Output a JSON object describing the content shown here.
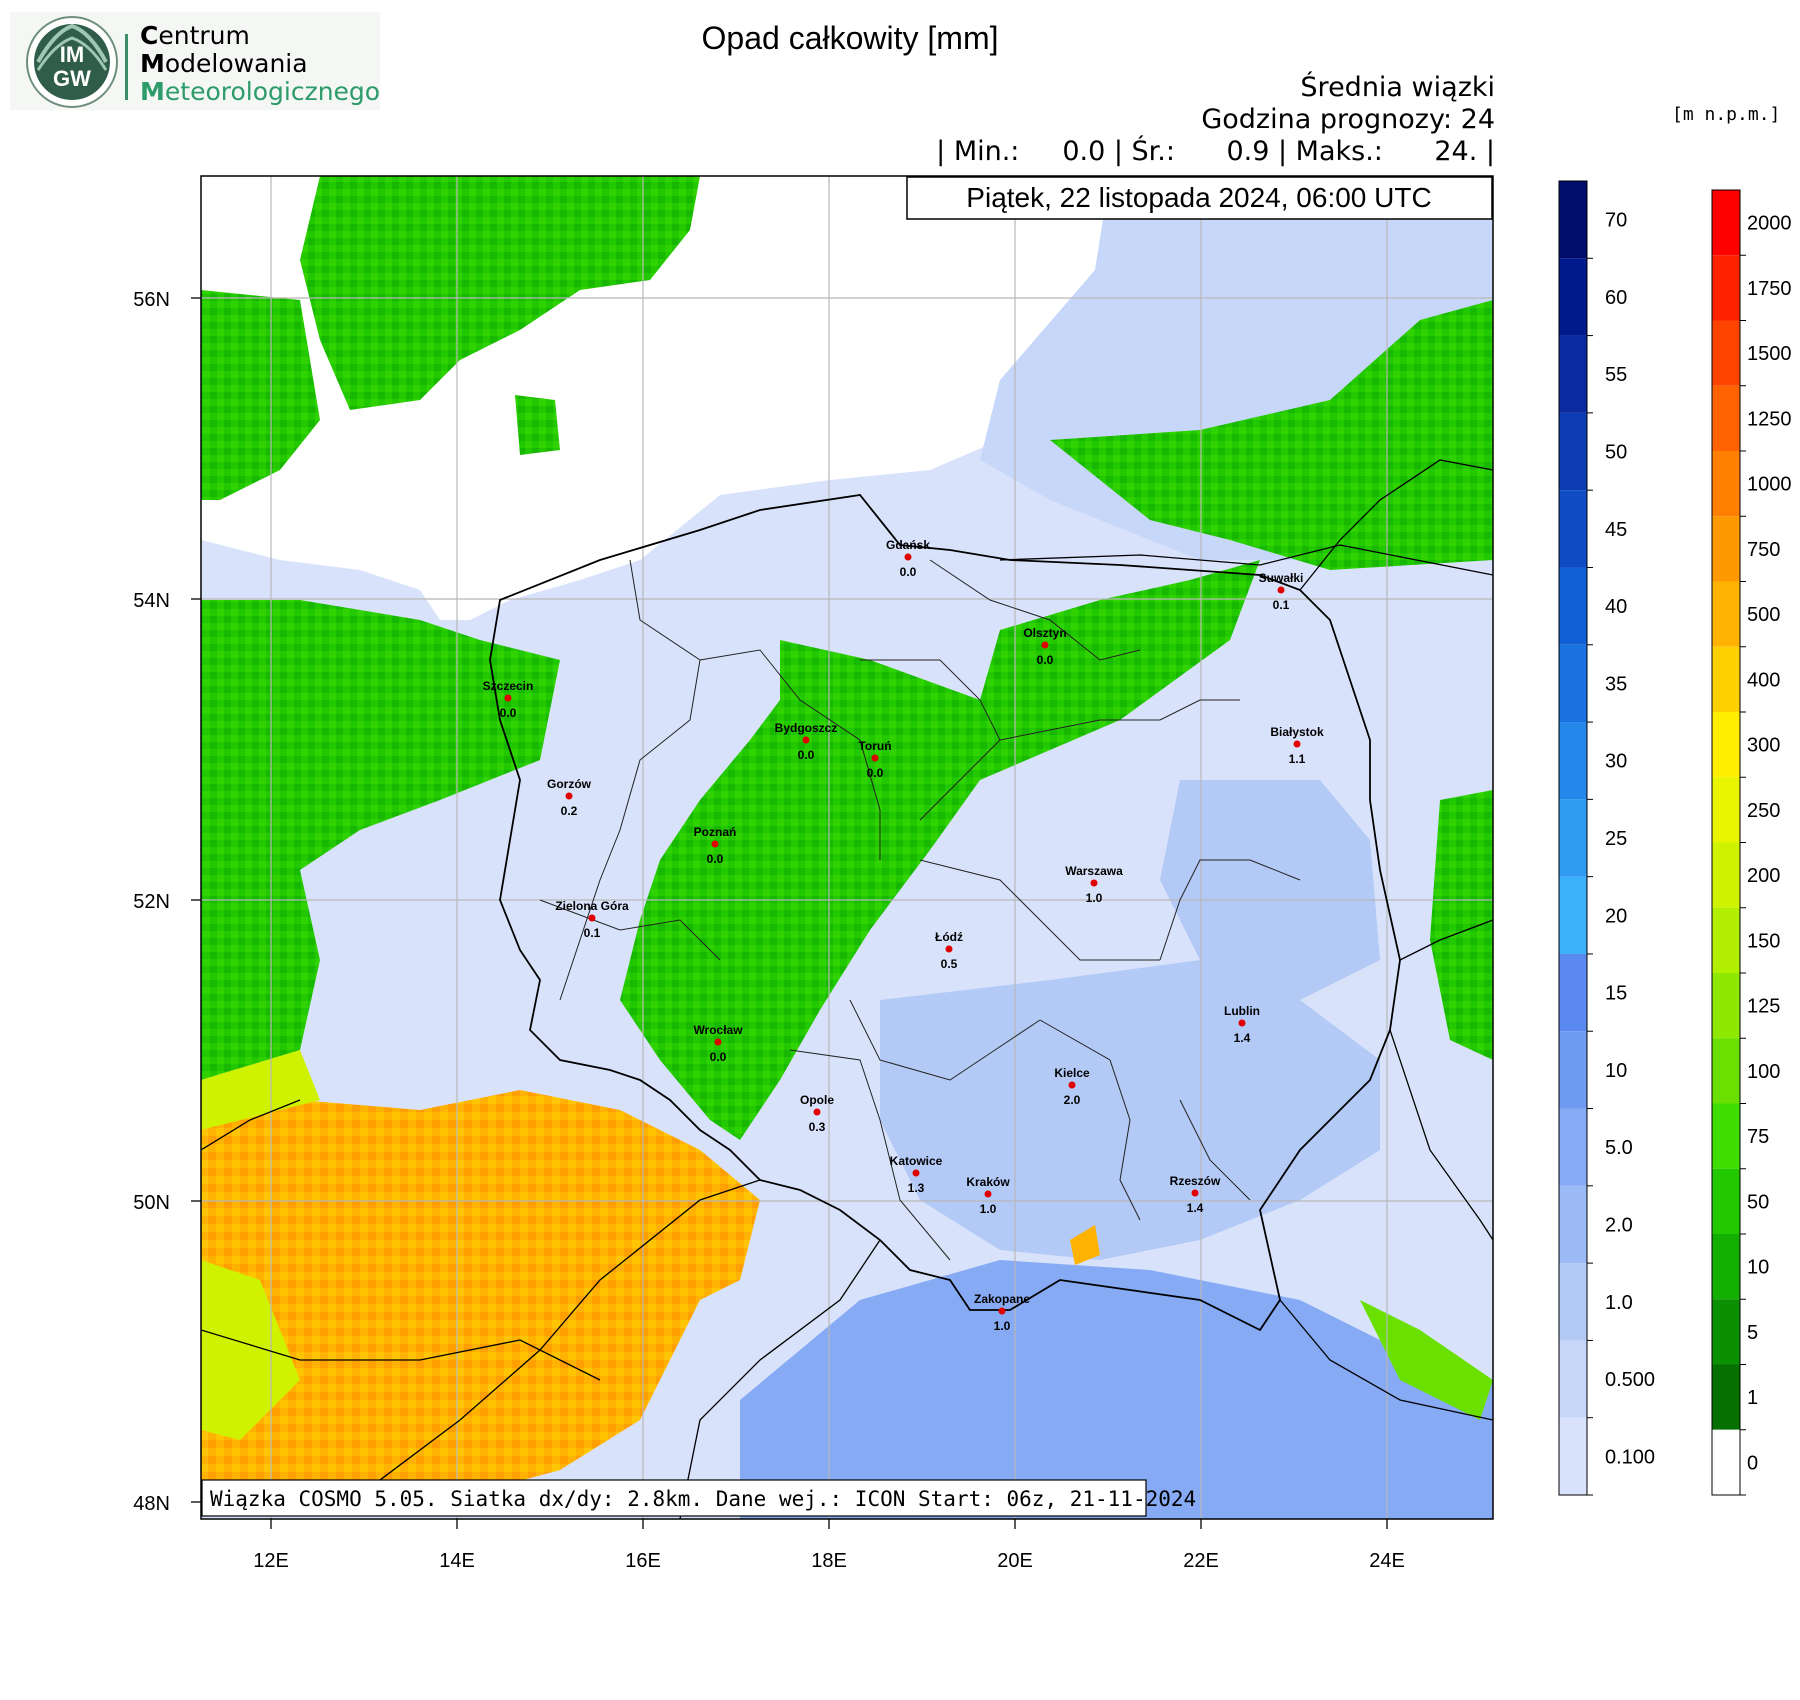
{
  "brand": {
    "logo_text_top": "IM",
    "logo_text_bottom": "GW",
    "line1_initial": "C",
    "line1_rest": "entrum",
    "line2_initial": "M",
    "line2_rest": "odelowania",
    "line3_initial": "M",
    "line3_rest": "eteorologicznego"
  },
  "header": {
    "title": "Opad całkowity [mm]",
    "subtitle": "Średnia wiązki",
    "forecast_hour": "Godzina prognozy: 24",
    "stats": "| Min.:     0.0 | Śr.:      0.9 | Maks.:      24. |",
    "date_box": "Piątek, 22 listopada 2024, 06:00 UTC"
  },
  "footer_box": "Wiązka COSMO 5.05. Siatka dx/dy: 2.8km. Dane wej.: ICON Start: 06z, 21-11-2024",
  "axes": {
    "lat_labels": [
      "56N",
      "54N",
      "52N",
      "50N",
      "48N"
    ],
    "lon_labels": [
      "12E",
      "14E",
      "16E",
      "18E",
      "20E",
      "22E",
      "24E"
    ]
  },
  "precip_legend": {
    "labels": [
      "70",
      "60",
      "55",
      "50",
      "45",
      "40",
      "35",
      "30",
      "25",
      "20",
      "15",
      "10",
      "5.0",
      "2.0",
      "1.0",
      "0.500",
      "0.100"
    ],
    "colors": [
      "#000d6b",
      "#001a8c",
      "#0a2aa0",
      "#0d3bb4",
      "#0f4cc4",
      "#1260d6",
      "#1a73e0",
      "#2487ea",
      "#2f9bf2",
      "#3cb0f8",
      "#5a8af0",
      "#6e9af2",
      "#86aaf4",
      "#9cbaf5",
      "#b3caf7",
      "#c7d7f9",
      "#d8e3fb"
    ]
  },
  "elevation_legend": {
    "unit": "[m n.p.m.]",
    "labels": [
      "2000",
      "1750",
      "1500",
      "1250",
      "1000",
      "750",
      "500",
      "400",
      "300",
      "250",
      "200",
      "150",
      "125",
      "100",
      "75",
      "50",
      "10",
      "5",
      "1",
      "0"
    ],
    "colors": [
      "#ff0000",
      "#ff2200",
      "#ff4400",
      "#ff6200",
      "#ff7f00",
      "#ff9900",
      "#ffb300",
      "#ffd000",
      "#ffee00",
      "#e8f400",
      "#cff200",
      "#b2ee00",
      "#8ee800",
      "#6ae000",
      "#3dde00",
      "#22c800",
      "#12ae00",
      "#0a9000",
      "#067000",
      "#ffffff"
    ]
  },
  "cities": [
    {
      "name": "Gdańsk",
      "value": "0.0"
    },
    {
      "name": "Szczecin",
      "value": "0.0"
    },
    {
      "name": "Olsztyn",
      "value": "0.0"
    },
    {
      "name": "Suwałki",
      "value": "0.1"
    },
    {
      "name": "Bydgoszcz",
      "value": "0.0"
    },
    {
      "name": "Toruń",
      "value": "0.0"
    },
    {
      "name": "Białystok",
      "value": "1.1"
    },
    {
      "name": "Gorzów",
      "value": "0.2"
    },
    {
      "name": "Poznań",
      "value": "0.0"
    },
    {
      "name": "Warszawa",
      "value": "1.0"
    },
    {
      "name": "Zielona Góra",
      "value": "0.1"
    },
    {
      "name": "Łódź",
      "value": "0.5"
    },
    {
      "name": "Lublin",
      "value": "1.4"
    },
    {
      "name": "Wrocław",
      "value": "0.0"
    },
    {
      "name": "Kielce",
      "value": "2.0"
    },
    {
      "name": "Opole",
      "value": "0.3"
    },
    {
      "name": "Katowice",
      "value": "1.3"
    },
    {
      "name": "Kraków",
      "value": "1.0"
    },
    {
      "name": "Rzeszów",
      "value": "1.4"
    },
    {
      "name": "Zakopane",
      "value": "1.0"
    }
  ],
  "colors": {
    "sea": "#ffffff",
    "light_precip": "#d8e3fb",
    "medium_precip": "#b3caf7",
    "strong_precip": "#86aaf4",
    "lowland_green": "#22c800",
    "green_light": "#6ae000",
    "upland_yellow": "#cff200",
    "mountain_orange": "#ffb300",
    "city_dot": "#e00000"
  }
}
